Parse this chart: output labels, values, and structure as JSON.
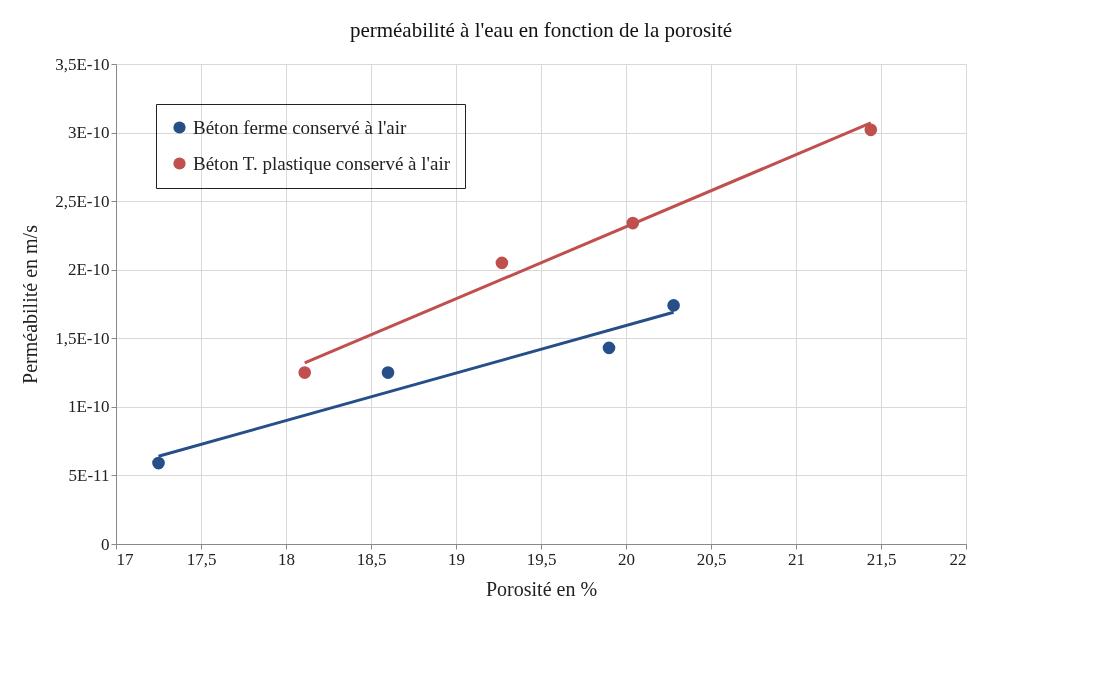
{
  "chart_data": {
    "type": "scatter",
    "title": "perméabilité à l'eau en fonction de la porosité",
    "xlabel": "Porosité en %",
    "ylabel": "Perméabilité  en m/s",
    "xlim": [
      17,
      22
    ],
    "xticks": [
      17,
      {
        "value": 17.5,
        "label": "17,5"
      },
      18,
      {
        "value": 18.5,
        "label": "18,5"
      },
      19,
      {
        "value": 19.5,
        "label": "19,5"
      },
      20,
      {
        "value": 20.5,
        "label": "20,5"
      },
      21,
      {
        "value": 21.5,
        "label": "21,5"
      },
      22
    ],
    "ylim": [
      0,
      3.5e-10
    ],
    "yticks": [
      0,
      {
        "value": 5e-11,
        "label": "5E-11"
      },
      {
        "value": 1e-10,
        "label": "1E-10"
      },
      {
        "value": 1.5e-10,
        "label": "1,5E-10"
      },
      {
        "value": 2e-10,
        "label": "2E-10"
      },
      {
        "value": 2.5e-10,
        "label": "2,5E-10"
      },
      {
        "value": 3e-10,
        "label": "3E-10"
      },
      {
        "value": 3.5e-10,
        "label": "3,5E-10"
      }
    ],
    "grid": true,
    "legend": "top left",
    "marker": "circle",
    "series": [
      {
        "name": "Béton ferme conservé à l'air",
        "color": "#264f8a",
        "x": [
          17.25,
          18.6,
          19.9,
          20.28
        ],
        "values": [
          5.9e-11,
          1.25e-10,
          1.43e-10,
          1.74e-10
        ]
      },
      {
        "name": "Béton T. plastique conservé à l'air",
        "color": "#c0504d",
        "x": [
          18.11,
          19.27,
          20.04,
          21.44
        ],
        "values": [
          1.25e-10,
          2.05e-10,
          2.34e-10,
          3.02e-10
        ]
      },
      {
        "type": "line",
        "marker": "none",
        "color": "#264f8a",
        "x": [
          17.25,
          20.28
        ],
        "values": [
          6.4e-11,
          1.69e-10
        ]
      },
      {
        "type": "line",
        "marker": "none",
        "color": "#c0504d",
        "x": [
          18.11,
          21.44
        ],
        "values": [
          1.32e-10,
          3.07e-10
        ]
      }
    ]
  }
}
